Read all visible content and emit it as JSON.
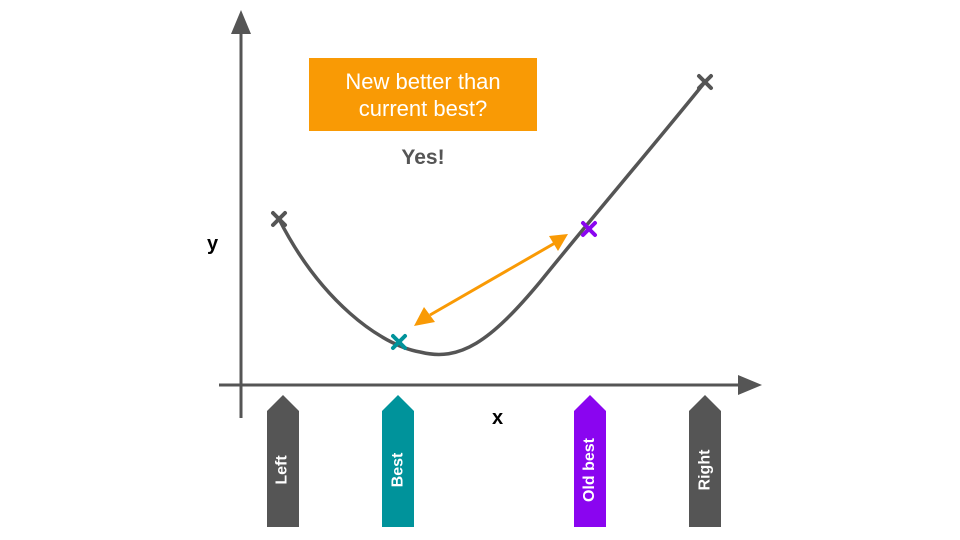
{
  "callout": {
    "line1": "New better than",
    "line2": "current best?",
    "color": "#F99A05"
  },
  "answer": "Yes!",
  "axes": {
    "x_label": "x",
    "y_label": "y",
    "color": "#555555"
  },
  "markers": [
    {
      "key": "left",
      "label": "Left",
      "color": "#555555"
    },
    {
      "key": "best",
      "label": "Best",
      "color": "#00939B"
    },
    {
      "key": "old-best",
      "label": "Old best",
      "color": "#8A05F0"
    },
    {
      "key": "right",
      "label": "Right",
      "color": "#555555"
    }
  ],
  "points": [
    {
      "key": "left-point",
      "color": "#555555"
    },
    {
      "key": "best-point",
      "color": "#00939B"
    },
    {
      "key": "old-best-point",
      "color": "#8A05F0"
    },
    {
      "key": "right-point",
      "color": "#555555"
    }
  ],
  "comparison_arrow_color": "#F99A05",
  "curve_color": "#555555"
}
